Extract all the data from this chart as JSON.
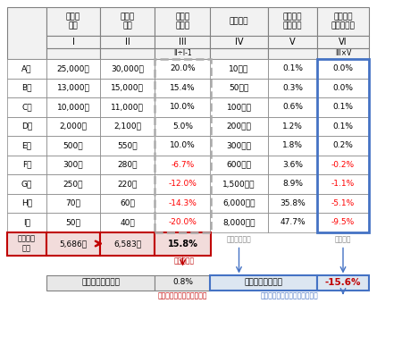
{
  "companies": [
    "A社",
    "B社",
    "C社",
    "D社",
    "E社",
    "F社",
    "G社",
    "H社",
    "I社"
  ],
  "col1_values": [
    "25,000円",
    "13,000円",
    "10,000円",
    "2,000円",
    "500円",
    "300円",
    "250円",
    "70円",
    "50円"
  ],
  "col2_values": [
    "30,000円",
    "15,000円",
    "11,000円",
    "2,100円",
    "550円",
    "280円",
    "220円",
    "60円",
    "40円"
  ],
  "col3_values": [
    "20.0%",
    "15.4%",
    "10.0%",
    "5.0%",
    "10.0%",
    "-6.7%",
    "-12.0%",
    "-14.3%",
    "-20.0%"
  ],
  "col3_negative": [
    false,
    false,
    false,
    false,
    false,
    true,
    true,
    true,
    true
  ],
  "col4_values": [
    "10億円",
    "50億円",
    "100億円",
    "200億円",
    "300億円",
    "600億円",
    "1,500億円",
    "6,000億円",
    "8,000億円"
  ],
  "col5_values": [
    "0.1%",
    "0.3%",
    "0.6%",
    "1.2%",
    "1.8%",
    "3.6%",
    "8.9%",
    "35.8%",
    "47.7%"
  ],
  "col6_values": [
    "0.0%",
    "0.0%",
    "0.1%",
    "0.1%",
    "0.2%",
    "-0.2%",
    "-1.1%",
    "-5.1%",
    "-9.5%"
  ],
  "col6_negative": [
    false,
    false,
    false,
    false,
    false,
    true,
    true,
    true,
    true
  ],
  "avg_label": "単純平均\n株価",
  "avg_val1": "5,686円",
  "avg_val2": "6,583円",
  "avg_val3": "15.8%",
  "bottom_left_label": "変化率の算術平均",
  "bottom_left_val": "0.8%",
  "bottom_right_label": "変化率の加重平均",
  "bottom_right_val": "-15.6%",
  "note_kono_henka": "この変化率",
  "note_right1": "この算術平均",
  "note_right2": "この合計",
  "bottom_note_left": "単純平均株価指数の変化率",
  "bottom_note_right": "時価総額加重平均指数の変化率",
  "bg_white": "#ffffff",
  "bg_pink": "#f2dcdb",
  "bg_blue": "#dce6f1",
  "bg_header": "#f2f2f2",
  "border_gray": "#808080",
  "dark_red": "#c00000",
  "blue_accent": "#4472c4",
  "negative_color": "#ff0000",
  "bg_bottom_left": "#e8e8e8"
}
